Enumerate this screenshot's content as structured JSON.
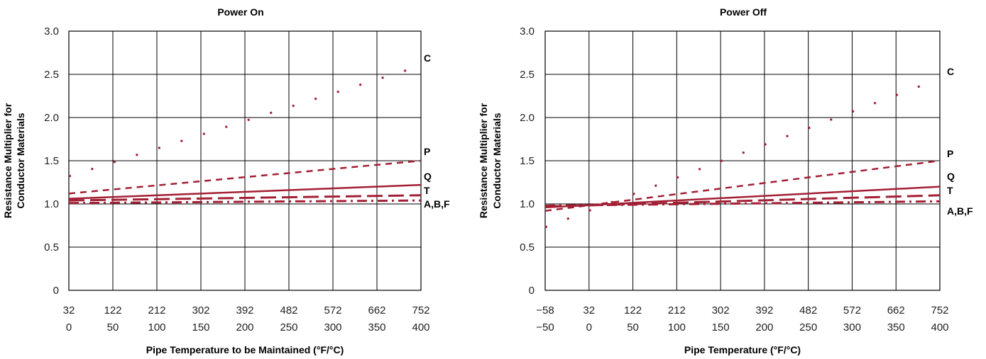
{
  "chart_data": [
    {
      "type": "line",
      "title": "Power On",
      "xlabel": "Pipe Temperature to be Maintained (°F/°C)",
      "ylabel_lines": [
        "Resistance Multiplier for",
        "Conductor Materials"
      ],
      "x_ticks_f": [
        "32",
        "122",
        "212",
        "302",
        "392",
        "482",
        "572",
        "662",
        "752"
      ],
      "x_ticks_c": [
        "0",
        "50",
        "100",
        "150",
        "200",
        "250",
        "300",
        "350",
        "400"
      ],
      "x_values_c": [
        0,
        50,
        100,
        150,
        200,
        250,
        300,
        350,
        400
      ],
      "xlim_c": [
        0,
        400
      ],
      "y_ticks": [
        "0",
        "0.5",
        "1.0",
        "1.5",
        "2.0",
        "2.5",
        "3.0"
      ],
      "ylim": [
        0,
        3.0
      ],
      "grid": true,
      "series": [
        {
          "name": "C",
          "style": "dotted",
          "x": [
            0,
            400
          ],
          "y": [
            1.32,
            2.6
          ]
        },
        {
          "name": "P",
          "style": "short-dash",
          "x": [
            0,
            400
          ],
          "y": [
            1.12,
            1.5
          ]
        },
        {
          "name": "Q",
          "style": "solid",
          "x": [
            0,
            400
          ],
          "y": [
            1.06,
            1.22
          ]
        },
        {
          "name": "T",
          "style": "long-dash",
          "x": [
            0,
            400
          ],
          "y": [
            1.04,
            1.1
          ]
        },
        {
          "name": "A,B,F",
          "style": "dash-dot",
          "x": [
            0,
            400
          ],
          "y": [
            1.01,
            1.04
          ]
        }
      ]
    },
    {
      "type": "line",
      "title": "Power Off",
      "xlabel": "Pipe Temperature (°F/°C)",
      "ylabel_lines": [
        "Resistance Multiplier for",
        "Conductor Materials"
      ],
      "x_ticks_f": [
        "−58",
        "32",
        "122",
        "212",
        "302",
        "392",
        "482",
        "572",
        "662",
        "752"
      ],
      "x_ticks_c": [
        "−50",
        "0",
        "50",
        "100",
        "150",
        "200",
        "250",
        "300",
        "350",
        "400"
      ],
      "x_values_c": [
        -50,
        0,
        50,
        100,
        150,
        200,
        250,
        300,
        350,
        400
      ],
      "xlim_c": [
        -50,
        400
      ],
      "y_ticks": [
        "0",
        "0.5",
        "1.0",
        "1.5",
        "2.0",
        "2.5",
        "3.0"
      ],
      "ylim": [
        0,
        3.0
      ],
      "grid": true,
      "series": [
        {
          "name": "C",
          "style": "dotted",
          "x": [
            -50,
            400
          ],
          "y": [
            0.73,
            2.45
          ]
        },
        {
          "name": "P",
          "style": "short-dash",
          "x": [
            -50,
            400
          ],
          "y": [
            0.92,
            1.5
          ]
        },
        {
          "name": "Q",
          "style": "solid",
          "x": [
            -50,
            400
          ],
          "y": [
            0.96,
            1.2
          ]
        },
        {
          "name": "T",
          "style": "long-dash",
          "x": [
            -50,
            400
          ],
          "y": [
            0.97,
            1.1
          ]
        },
        {
          "name": "A,B,F",
          "style": "dash-dot",
          "x": [
            -50,
            400
          ],
          "y": [
            0.98,
            1.03
          ]
        }
      ]
    }
  ],
  "colors": {
    "series": "#a31f34",
    "grid": "#000000",
    "text": "#000000"
  }
}
